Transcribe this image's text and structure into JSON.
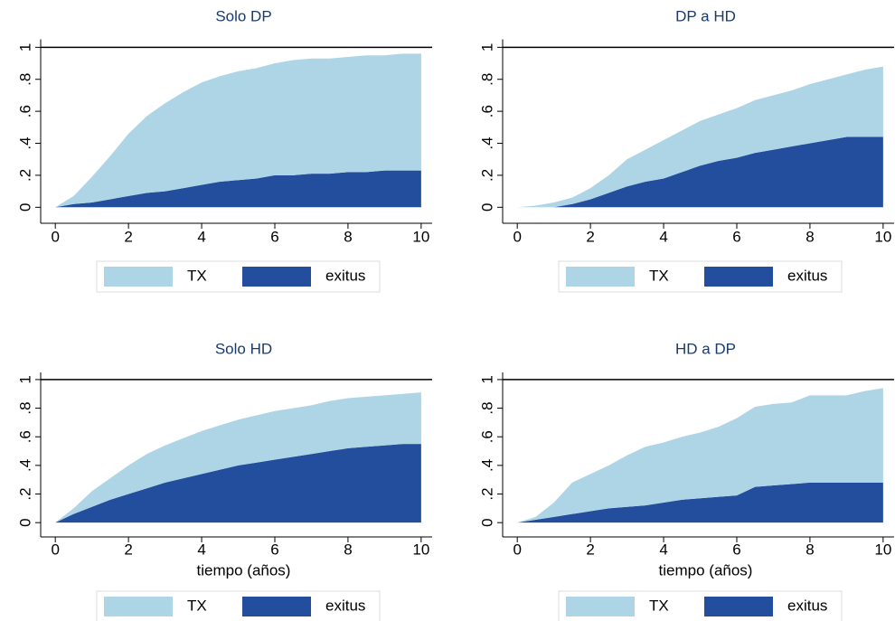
{
  "chart_data": [
    {
      "type": "area",
      "stacked": true,
      "title": "Solo DP",
      "legend": "bottom",
      "refline": 1,
      "x": [
        0,
        0.5,
        1,
        1.5,
        2,
        2.5,
        3,
        3.5,
        4,
        4.5,
        5,
        5.5,
        6,
        6.5,
        7,
        7.5,
        8,
        8.5,
        9,
        9.5,
        10
      ],
      "series": [
        {
          "name": "exitus",
          "color": "#234d9d",
          "values": [
            0,
            0.02,
            0.03,
            0.05,
            0.07,
            0.09,
            0.1,
            0.12,
            0.14,
            0.16,
            0.17,
            0.18,
            0.2,
            0.2,
            0.21,
            0.21,
            0.22,
            0.22,
            0.23,
            0.23,
            0.23
          ]
        },
        {
          "name": "TX",
          "color": "#add5e5",
          "values": [
            0,
            0.05,
            0.16,
            0.27,
            0.39,
            0.48,
            0.55,
            0.6,
            0.64,
            0.66,
            0.68,
            0.69,
            0.7,
            0.72,
            0.72,
            0.72,
            0.72,
            0.73,
            0.72,
            0.73,
            0.73
          ]
        }
      ],
      "xlim": [
        -0.4,
        10.3
      ],
      "ylim": [
        -0.1,
        1.05
      ],
      "xticks": [
        0,
        2,
        4,
        6,
        8,
        10
      ],
      "yticks": [
        0,
        {
          "value": 0.2,
          "label": ".2"
        },
        {
          "value": 0.4,
          "label": ".4"
        },
        {
          "value": 0.6,
          "label": ".6"
        },
        {
          "value": 0.8,
          "label": ".8"
        },
        1
      ]
    },
    {
      "type": "area",
      "stacked": true,
      "title": "DP a HD",
      "legend": "bottom",
      "refline": 1,
      "x": [
        0,
        0.5,
        1,
        1.5,
        2,
        2.5,
        3,
        3.5,
        4,
        4.5,
        5,
        5.5,
        6,
        6.5,
        7,
        7.5,
        8,
        8.5,
        9,
        9.5,
        10
      ],
      "series": [
        {
          "name": "exitus",
          "color": "#234d9d",
          "values": [
            0,
            0,
            0,
            0.02,
            0.05,
            0.09,
            0.13,
            0.16,
            0.18,
            0.22,
            0.26,
            0.29,
            0.31,
            0.34,
            0.36,
            0.38,
            0.4,
            0.42,
            0.44,
            0.44,
            0.44
          ]
        },
        {
          "name": "TX",
          "color": "#add5e5",
          "values": [
            0,
            0.01,
            0.03,
            0.04,
            0.07,
            0.11,
            0.17,
            0.2,
            0.24,
            0.26,
            0.28,
            0.29,
            0.31,
            0.33,
            0.34,
            0.35,
            0.37,
            0.38,
            0.39,
            0.42,
            0.44
          ]
        }
      ],
      "xlim": [
        -0.4,
        10.3
      ],
      "ylim": [
        -0.1,
        1.05
      ],
      "xticks": [
        0,
        2,
        4,
        6,
        8,
        10
      ],
      "yticks": [
        0,
        {
          "value": 0.2,
          "label": ".2"
        },
        {
          "value": 0.4,
          "label": ".4"
        },
        {
          "value": 0.6,
          "label": ".6"
        },
        {
          "value": 0.8,
          "label": ".8"
        },
        1
      ]
    },
    {
      "type": "area",
      "stacked": true,
      "title": "Solo HD",
      "xlabel": "tiempo (años)",
      "legend": "bottom",
      "refline": 1,
      "x": [
        0,
        0.5,
        1,
        1.5,
        2,
        2.5,
        3,
        3.5,
        4,
        4.5,
        5,
        5.5,
        6,
        6.5,
        7,
        7.5,
        8,
        8.5,
        9,
        9.5,
        10
      ],
      "series": [
        {
          "name": "exitus",
          "color": "#234d9d",
          "values": [
            0,
            0.06,
            0.11,
            0.16,
            0.2,
            0.24,
            0.28,
            0.31,
            0.34,
            0.37,
            0.4,
            0.42,
            0.44,
            0.46,
            0.48,
            0.5,
            0.52,
            0.53,
            0.54,
            0.55,
            0.55
          ]
        },
        {
          "name": "TX",
          "color": "#add5e5",
          "values": [
            0,
            0.04,
            0.11,
            0.15,
            0.2,
            0.24,
            0.26,
            0.28,
            0.3,
            0.31,
            0.32,
            0.33,
            0.34,
            0.34,
            0.34,
            0.35,
            0.35,
            0.35,
            0.35,
            0.35,
            0.36
          ]
        }
      ],
      "xlim": [
        -0.4,
        10.3
      ],
      "ylim": [
        -0.1,
        1.05
      ],
      "xticks": [
        0,
        2,
        4,
        6,
        8,
        10
      ],
      "yticks": [
        0,
        {
          "value": 0.2,
          "label": ".2"
        },
        {
          "value": 0.4,
          "label": ".4"
        },
        {
          "value": 0.6,
          "label": ".6"
        },
        {
          "value": 0.8,
          "label": ".8"
        },
        1
      ]
    },
    {
      "type": "area",
      "stacked": true,
      "title": "HD a DP",
      "xlabel": "tiempo (años)",
      "legend": "bottom",
      "refline": 1,
      "x": [
        0,
        0.5,
        1,
        1.5,
        2,
        2.5,
        3,
        3.5,
        4,
        4.5,
        5,
        5.5,
        6,
        6.5,
        7,
        7.5,
        8,
        8.5,
        9,
        9.5,
        10
      ],
      "series": [
        {
          "name": "exitus",
          "color": "#234d9d",
          "values": [
            0,
            0.02,
            0.04,
            0.06,
            0.08,
            0.1,
            0.11,
            0.12,
            0.14,
            0.16,
            0.17,
            0.18,
            0.19,
            0.25,
            0.26,
            0.27,
            0.28,
            0.28,
            0.28,
            0.28,
            0.28
          ]
        },
        {
          "name": "TX",
          "color": "#add5e5",
          "values": [
            0,
            0.02,
            0.1,
            0.22,
            0.26,
            0.3,
            0.36,
            0.41,
            0.42,
            0.44,
            0.46,
            0.49,
            0.54,
            0.56,
            0.57,
            0.57,
            0.61,
            0.61,
            0.61,
            0.64,
            0.66
          ]
        }
      ],
      "xlim": [
        -0.4,
        10.3
      ],
      "ylim": [
        -0.1,
        1.05
      ],
      "xticks": [
        0,
        2,
        4,
        6,
        8,
        10
      ],
      "yticks": [
        0,
        {
          "value": 0.2,
          "label": ".2"
        },
        {
          "value": 0.4,
          "label": ".4"
        },
        {
          "value": 0.6,
          "label": ".6"
        },
        {
          "value": 0.8,
          "label": ".8"
        },
        1
      ]
    }
  ]
}
